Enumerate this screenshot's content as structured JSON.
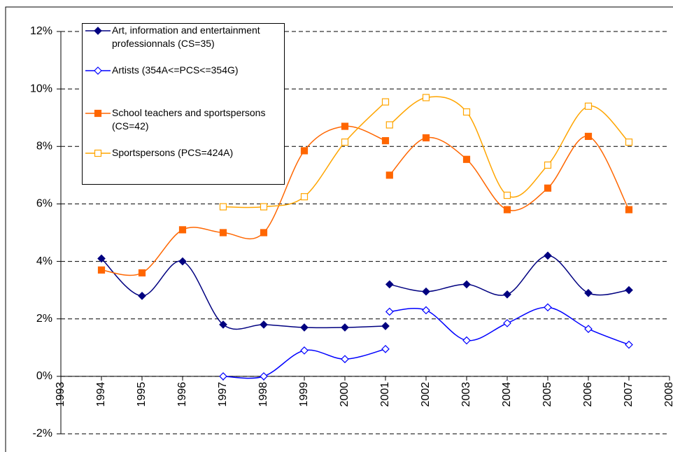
{
  "chart_data": {
    "type": "line",
    "smooth": true,
    "grid": true,
    "xlim": [
      1993,
      2008
    ],
    "xticks": [
      1993,
      1994,
      1995,
      1996,
      1997,
      1998,
      1999,
      2000,
      2001,
      2002,
      2003,
      2004,
      2005,
      2006,
      2007,
      2008
    ],
    "ylim": [
      -2,
      12
    ],
    "yticks": [
      {
        "value": -2,
        "label": "-2%"
      },
      {
        "value": 0,
        "label": "0%"
      },
      {
        "value": 2,
        "label": "2%"
      },
      {
        "value": 4,
        "label": "4%"
      },
      {
        "value": 6,
        "label": "6%"
      },
      {
        "value": 8,
        "label": "8%"
      },
      {
        "value": 10,
        "label": "10%"
      },
      {
        "value": 12,
        "label": "12%"
      }
    ],
    "legend": "upper left",
    "series": [
      {
        "name": "Art, information and entertainment professionnals (CS=35)",
        "color": "#000080",
        "marker": "diamond",
        "filled": true,
        "pieces": [
          {
            "x": [
              1994,
              1995,
              1996,
              1997,
              1998,
              1999,
              2000,
              2001
            ],
            "values": [
              4.1,
              2.8,
              4.0,
              1.8,
              1.8,
              1.7,
              1.7,
              1.75
            ]
          },
          {
            "x": [
              2001.1,
              2002,
              2003,
              2004,
              2005,
              2006,
              2007
            ],
            "values": [
              3.2,
              2.95,
              3.2,
              2.85,
              4.2,
              2.9,
              3.0
            ]
          }
        ]
      },
      {
        "name": "Artists (354A<=PCS<=354G)",
        "color": "#0000FF",
        "marker": "diamond",
        "filled": false,
        "pieces": [
          {
            "x": [
              1997,
              1998,
              1999,
              2000,
              2001
            ],
            "values": [
              0,
              0,
              0.9,
              0.6,
              0.95
            ]
          },
          {
            "x": [
              2001.1,
              2002,
              2003,
              2004,
              2005,
              2006,
              2007
            ],
            "values": [
              2.25,
              2.3,
              1.25,
              1.85,
              2.4,
              1.65,
              1.1
            ]
          }
        ]
      },
      {
        "name": "School teachers and sportspersons (CS=42)",
        "color": "#FF6600",
        "marker": "square",
        "filled": true,
        "pieces": [
          {
            "x": [
              1994,
              1995,
              1996,
              1997,
              1998,
              1999,
              2000,
              2001
            ],
            "values": [
              3.7,
              3.6,
              5.1,
              5.0,
              5.0,
              7.85,
              8.7,
              8.2
            ]
          },
          {
            "x": [
              2001.1,
              2002,
              2003,
              2004,
              2005,
              2006,
              2007
            ],
            "values": [
              7.0,
              8.3,
              7.55,
              5.8,
              6.55,
              8.35,
              5.8
            ]
          }
        ]
      },
      {
        "name": "Sportspersons (PCS=424A)",
        "color": "#FFA500",
        "marker": "square",
        "filled": false,
        "pieces": [
          {
            "x": [
              1997,
              1998,
              1999,
              2000,
              2001
            ],
            "values": [
              5.9,
              5.9,
              6.25,
              8.15,
              9.55
            ]
          },
          {
            "x": [
              2001.1,
              2002,
              2003,
              2004,
              2005,
              2006,
              2007
            ],
            "values": [
              8.75,
              9.7,
              9.2,
              6.3,
              7.35,
              9.4,
              8.15
            ]
          }
        ]
      }
    ]
  }
}
